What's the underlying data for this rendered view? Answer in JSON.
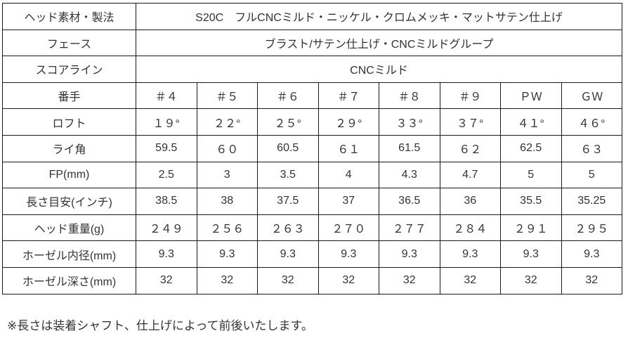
{
  "colors": {
    "background": "#ffffff",
    "text": "#333333",
    "border": "#1a1a1a"
  },
  "table": {
    "merged_rows": [
      {
        "label": "ヘッド素材・製法",
        "value": "S20C　フルCNCミルド・ニッケル・クロムメッキ・マットサテン仕上げ"
      },
      {
        "label": "フェース",
        "value": "ブラスト/サテン仕上げ・CNCミルドグループ"
      },
      {
        "label": "スコアライン",
        "value": "CNCミルド"
      }
    ],
    "spec_rows": [
      {
        "label": "番手",
        "values": [
          "＃４",
          "＃５",
          "＃６",
          "＃７",
          "＃８",
          "＃９",
          "ＰＷ",
          "ＧＷ"
        ]
      },
      {
        "label": "ロフト",
        "values": [
          "１９°",
          "２２°",
          "２５°",
          "２９°",
          "３３°",
          "３７°",
          "４１°",
          "４６°"
        ]
      },
      {
        "label": "ライ角",
        "values": [
          "59.5",
          "６０",
          "60.5",
          "６１",
          "61.5",
          "６２",
          "62.5",
          "６３"
        ]
      },
      {
        "label": "FP(mm)",
        "values": [
          "2.5",
          "3",
          "3.5",
          "4",
          "4.3",
          "4.7",
          "5",
          "5"
        ]
      },
      {
        "label": "長さ目安(インチ)",
        "values": [
          "38.5",
          "38",
          "37.5",
          "37",
          "36.5",
          "36",
          "35.5",
          "35.25"
        ]
      },
      {
        "label": "ヘッド重量(g)",
        "values": [
          "２４９",
          "２５６",
          "２６３",
          "２７０",
          "２７７",
          "２８４",
          "２９１",
          "２９５"
        ]
      },
      {
        "label": "ホーゼル内径(mm)",
        "values": [
          "9.3",
          "9.3",
          "9.3",
          "9.3",
          "9.3",
          "9.3",
          "9.3",
          "9.3"
        ]
      },
      {
        "label": "ホーゼル深さ(mm)",
        "values": [
          "32",
          "32",
          "32",
          "32",
          "32",
          "32",
          "32",
          "32"
        ]
      }
    ]
  },
  "footer": {
    "note": "※長さは装着シャフト、仕上げによって前後いたします。"
  }
}
